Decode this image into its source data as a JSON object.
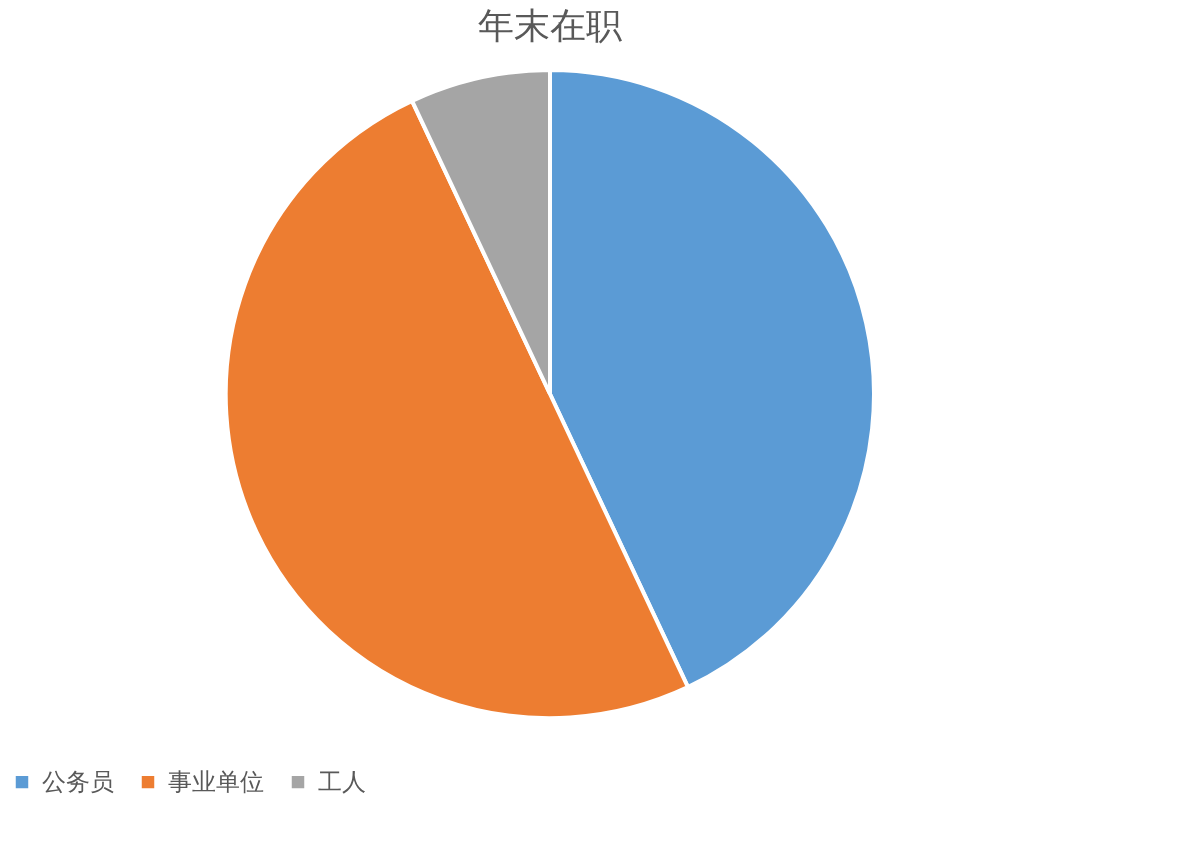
{
  "chart_data": {
    "type": "pie",
    "title": "年末在职",
    "categories": [
      "公务员",
      "事业单位",
      "工人"
    ],
    "values": [
      43,
      50,
      7
    ],
    "colors": [
      "#5b9bd5",
      "#ed7d31",
      "#a5a5a5"
    ],
    "legend": "bottom"
  }
}
